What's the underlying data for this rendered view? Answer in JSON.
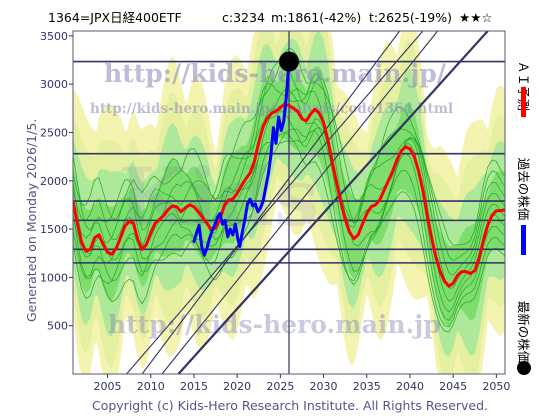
{
  "header": {
    "code_name": "1364=JPX日経400ETF",
    "current": "c:3234",
    "min_info": "m:1861(-42%)",
    "target_info": "t:2625(-19%)",
    "stars": "★★☆"
  },
  "side_label": "Generated on Monday 2026/1/5.",
  "copyright": "Copyright (c) Kids-Hero Research Institute. All Rights Reserved.",
  "watermarks": {
    "url_main": "http://kids-hero.main.jp/",
    "url_sub": "http://kids-hero.main.jp/analysis/code1364.html",
    "url_bottom": "http://kids-hero.main.jp"
  },
  "legend": {
    "ai_forecast": "ＡＩ予測",
    "past_price": "過去の株価",
    "latest_price": "最新の株価"
  },
  "colors": {
    "ai_line": "#ff0000",
    "past_line": "#0000ff",
    "latest_dot": "#000000",
    "band_green": "#33cc33",
    "band_yellow": "#eeee88",
    "grid": "#333366",
    "axis_text": "#333366"
  },
  "chart_data": {
    "type": "line",
    "xlim": [
      2001,
      2051
    ],
    "ylim": [
      0,
      3550
    ],
    "x_ticks": [
      2005,
      2010,
      2015,
      2020,
      2025,
      2030,
      2035,
      2040,
      2045,
      2050
    ],
    "y_ticks": [
      500,
      1000,
      1500,
      2000,
      2500,
      3000,
      3500
    ],
    "h_levels": [
      1150,
      1290,
      1590,
      1790,
      2280,
      3234
    ],
    "current_year": 2026.0,
    "latest_point": {
      "x": 2026.0,
      "y": 3234
    },
    "diagonal_lines": [
      {
        "points": [
          [
            2013.2,
            0
          ],
          [
            2049.0,
            3550
          ]
        ]
      },
      {
        "points": [
          [
            2007.2,
            0
          ],
          [
            2041.5,
            3550
          ]
        ]
      },
      {
        "points": [
          [
            2011.3,
            0
          ],
          [
            2043.2,
            3550
          ]
        ]
      },
      {
        "points": [
          [
            2009.0,
            0
          ],
          [
            2038.8,
            3550
          ]
        ]
      }
    ],
    "series": [
      {
        "name": "ＡＩ予測",
        "color": "#ff0000",
        "points": [
          [
            2001.0,
            1790
          ],
          [
            2001.5,
            1560
          ],
          [
            2002.0,
            1360
          ],
          [
            2002.5,
            1270
          ],
          [
            2003.0,
            1290
          ],
          [
            2003.5,
            1410
          ],
          [
            2004.0,
            1440
          ],
          [
            2004.5,
            1340
          ],
          [
            2005.0,
            1260
          ],
          [
            2005.5,
            1240
          ],
          [
            2006.0,
            1300
          ],
          [
            2006.5,
            1410
          ],
          [
            2007.0,
            1530
          ],
          [
            2007.5,
            1580
          ],
          [
            2008.0,
            1560
          ],
          [
            2008.5,
            1390
          ],
          [
            2009.0,
            1290
          ],
          [
            2009.5,
            1340
          ],
          [
            2010.0,
            1460
          ],
          [
            2010.5,
            1560
          ],
          [
            2011.0,
            1600
          ],
          [
            2011.5,
            1640
          ],
          [
            2012.0,
            1700
          ],
          [
            2012.5,
            1740
          ],
          [
            2013.0,
            1730
          ],
          [
            2013.5,
            1680
          ],
          [
            2014.0,
            1720
          ],
          [
            2014.5,
            1750
          ],
          [
            2015.0,
            1730
          ],
          [
            2015.5,
            1680
          ],
          [
            2016.0,
            1620
          ],
          [
            2016.5,
            1560
          ],
          [
            2017.0,
            1500
          ],
          [
            2017.5,
            1510
          ],
          [
            2018.0,
            1600
          ],
          [
            2018.5,
            1740
          ],
          [
            2019.0,
            1800
          ],
          [
            2019.5,
            1810
          ],
          [
            2020.0,
            1870
          ],
          [
            2020.5,
            1950
          ],
          [
            2021.0,
            2020
          ],
          [
            2021.5,
            2080
          ],
          [
            2022.0,
            2200
          ],
          [
            2022.5,
            2400
          ],
          [
            2023.0,
            2560
          ],
          [
            2023.5,
            2650
          ],
          [
            2024.0,
            2700
          ],
          [
            2024.5,
            2720
          ],
          [
            2025.0,
            2760
          ],
          [
            2025.5,
            2790
          ],
          [
            2026.0,
            2780
          ],
          [
            2026.5,
            2750
          ],
          [
            2027.0,
            2720
          ],
          [
            2027.5,
            2640
          ],
          [
            2028.0,
            2620
          ],
          [
            2028.5,
            2690
          ],
          [
            2029.0,
            2740
          ],
          [
            2029.5,
            2700
          ],
          [
            2030.0,
            2600
          ],
          [
            2030.5,
            2420
          ],
          [
            2031.0,
            2200
          ],
          [
            2031.5,
            1980
          ],
          [
            2032.0,
            1780
          ],
          [
            2032.5,
            1600
          ],
          [
            2033.0,
            1470
          ],
          [
            2033.5,
            1400
          ],
          [
            2034.0,
            1440
          ],
          [
            2034.5,
            1550
          ],
          [
            2035.0,
            1660
          ],
          [
            2035.5,
            1730
          ],
          [
            2036.0,
            1750
          ],
          [
            2036.5,
            1800
          ],
          [
            2037.0,
            1900
          ],
          [
            2037.5,
            2000
          ],
          [
            2038.0,
            2100
          ],
          [
            2038.5,
            2220
          ],
          [
            2039.0,
            2310
          ],
          [
            2039.5,
            2350
          ],
          [
            2040.0,
            2330
          ],
          [
            2040.5,
            2250
          ],
          [
            2041.0,
            2100
          ],
          [
            2041.5,
            1900
          ],
          [
            2042.0,
            1640
          ],
          [
            2042.5,
            1410
          ],
          [
            2043.0,
            1210
          ],
          [
            2043.5,
            1060
          ],
          [
            2044.0,
            960
          ],
          [
            2044.5,
            910
          ],
          [
            2045.0,
            940
          ],
          [
            2045.5,
            1020
          ],
          [
            2046.0,
            1060
          ],
          [
            2046.5,
            1060
          ],
          [
            2047.0,
            1040
          ],
          [
            2047.5,
            1070
          ],
          [
            2048.0,
            1200
          ],
          [
            2048.5,
            1380
          ],
          [
            2049.0,
            1540
          ],
          [
            2049.5,
            1640
          ],
          [
            2050.0,
            1690
          ],
          [
            2050.5,
            1690
          ],
          [
            2051.0,
            1700
          ]
        ]
      },
      {
        "name": "過去の株価",
        "color": "#0000ff",
        "points": [
          [
            2015.0,
            1370
          ],
          [
            2015.3,
            1460
          ],
          [
            2015.6,
            1540
          ],
          [
            2015.9,
            1320
          ],
          [
            2016.2,
            1230
          ],
          [
            2016.5,
            1300
          ],
          [
            2016.8,
            1400
          ],
          [
            2017.1,
            1480
          ],
          [
            2017.4,
            1540
          ],
          [
            2017.7,
            1620
          ],
          [
            2018.0,
            1660
          ],
          [
            2018.3,
            1550
          ],
          [
            2018.6,
            1590
          ],
          [
            2018.9,
            1420
          ],
          [
            2019.2,
            1500
          ],
          [
            2019.5,
            1440
          ],
          [
            2019.8,
            1550
          ],
          [
            2020.1,
            1390
          ],
          [
            2020.3,
            1320
          ],
          [
            2020.6,
            1470
          ],
          [
            2020.9,
            1600
          ],
          [
            2021.2,
            1760
          ],
          [
            2021.5,
            1810
          ],
          [
            2021.8,
            1740
          ],
          [
            2022.1,
            1760
          ],
          [
            2022.4,
            1680
          ],
          [
            2022.7,
            1720
          ],
          [
            2023.0,
            1790
          ],
          [
            2023.3,
            1930
          ],
          [
            2023.6,
            2070
          ],
          [
            2023.9,
            2260
          ],
          [
            2024.2,
            2550
          ],
          [
            2024.5,
            2390
          ],
          [
            2024.8,
            2660
          ],
          [
            2025.1,
            2520
          ],
          [
            2025.4,
            2620
          ],
          [
            2025.7,
            2880
          ],
          [
            2026.0,
            3234
          ]
        ]
      }
    ]
  }
}
